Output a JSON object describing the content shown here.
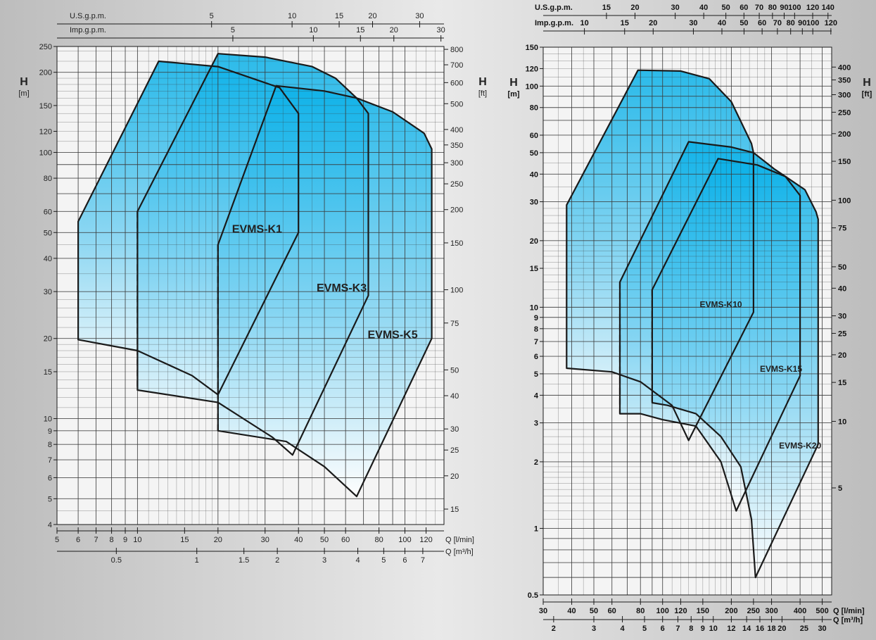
{
  "colors": {
    "fill_top": "#08b0e8",
    "fill_bottom": "#ffffff",
    "grid": "#3a3a3a",
    "outline": "#1a1a1a",
    "plot_bg": "#f4f4f4"
  },
  "chart_data": [
    {
      "type": "area",
      "description_scale": "log-log",
      "ylabel": "H",
      "ylabel_unit": "[m]",
      "y2label": "H",
      "y2label_unit": "[ft]",
      "xlabel_lpm": "Q [l/min]",
      "xlabel_m3h": "Q [m³/h]",
      "top_axis_1_label": "U.S.g.p.m.",
      "top_axis_2_label": "Imp.g.p.m.",
      "xlim_lpm": [
        5,
        140
      ],
      "ylim_m": [
        4,
        250
      ],
      "x_ticks_lpm": [
        "5",
        "6",
        "7",
        "8",
        "9",
        "10",
        "15",
        "20",
        "30",
        "40",
        "50",
        "60",
        "80",
        "100",
        "120"
      ],
      "x_ticks_m3h": [
        "0.5",
        "1",
        "1.5",
        "2",
        "3",
        "4",
        "5",
        "6",
        "7"
      ],
      "x_ticks_usgpm": [
        "5",
        "10",
        "15",
        "20",
        "30"
      ],
      "x_ticks_impgpm": [
        "5",
        "10",
        "15",
        "20",
        "30"
      ],
      "y_ticks_m": [
        "4",
        "5",
        "6",
        "7",
        "8",
        "9",
        "10",
        "15",
        "20",
        "30",
        "40",
        "50",
        "60",
        "80",
        "100",
        "120",
        "150",
        "200",
        "250"
      ],
      "y_ticks_ft": [
        "15",
        "20",
        "25",
        "30",
        "40",
        "50",
        "75",
        "100",
        "150",
        "200",
        "250",
        "300",
        "350",
        "400",
        "500",
        "600",
        "700",
        "800"
      ],
      "series": [
        {
          "name": "EVMS-K1",
          "envelope": [
            [
              6,
              55
            ],
            [
              12,
              220
            ],
            [
              20,
              210
            ],
            [
              34,
              175
            ],
            [
              40,
              140
            ],
            [
              40,
              50
            ],
            [
              20,
              12.3
            ],
            [
              16,
              14.5
            ],
            [
              10,
              18
            ],
            [
              6,
              19.8
            ]
          ],
          "dashed": [
            [
              10,
              60
            ],
            [
              10,
              12.8
            ]
          ]
        },
        {
          "name": "EVMS-K3",
          "envelope": [
            [
              10,
              60
            ],
            [
              20,
              235
            ],
            [
              30,
              228
            ],
            [
              45,
              210
            ],
            [
              55,
              190
            ],
            [
              66,
              160
            ],
            [
              73,
              140
            ],
            [
              73,
              29
            ],
            [
              38,
              7.3
            ],
            [
              32,
              8.5
            ],
            [
              20,
              11.5
            ],
            [
              10,
              12.8
            ]
          ],
          "dashed": [
            [
              20,
              45
            ],
            [
              20,
              9
            ]
          ]
        },
        {
          "name": "EVMS-K5",
          "envelope": [
            [
              20,
              45
            ],
            [
              33,
              178
            ],
            [
              50,
              170
            ],
            [
              66,
              160
            ],
            [
              90,
              142
            ],
            [
              118,
              118
            ],
            [
              126,
              103
            ],
            [
              126,
              20
            ],
            [
              66,
              5.1
            ],
            [
              50,
              6.6
            ],
            [
              36,
              8.2
            ],
            [
              20,
              9
            ]
          ],
          "dashed": []
        }
      ]
    },
    {
      "type": "area",
      "description_scale": "log-log",
      "ylabel": "H",
      "ylabel_unit": "[m]",
      "y2label": "H",
      "y2label_unit": "[ft]",
      "xlabel_lpm": "Q [l/min]",
      "xlabel_m3h": "Q [m³/h]",
      "top_axis_1_label": "U.S.g.p.m.",
      "top_axis_2_label": "Imp.g.p.m.",
      "xlim_lpm": [
        30,
        550
      ],
      "ylim_m": [
        0.5,
        150
      ],
      "x_ticks_lpm": [
        "30",
        "40",
        "50",
        "60",
        "80",
        "100",
        "120",
        "150",
        "200",
        "250",
        "300",
        "400",
        "500"
      ],
      "x_ticks_m3h": [
        "2",
        "3",
        "4",
        "5",
        "6",
        "7",
        "8",
        "9",
        "10",
        "12",
        "14",
        "16",
        "18",
        "20",
        "25",
        "30"
      ],
      "x_ticks_usgpm": [
        "15",
        "20",
        "30",
        "40",
        "50",
        "60",
        "70",
        "80",
        "90",
        "100",
        "120",
        "140"
      ],
      "x_ticks_impgpm": [
        "10",
        "15",
        "20",
        "30",
        "40",
        "50",
        "60",
        "70",
        "80",
        "90",
        "100",
        "120"
      ],
      "y_ticks_m": [
        "0.5",
        "1",
        "2",
        "3",
        "4",
        "5",
        "6",
        "7",
        "8",
        "9",
        "10",
        "15",
        "20",
        "30",
        "40",
        "50",
        "60",
        "80",
        "100",
        "120",
        "150"
      ],
      "y_ticks_ft": [
        "5",
        "10",
        "15",
        "20",
        "25",
        "30",
        "40",
        "50",
        "75",
        "100",
        "150",
        "200",
        "250",
        "300",
        "350",
        "400"
      ],
      "series": [
        {
          "name": "EVMS-K10",
          "envelope": [
            [
              38,
              29
            ],
            [
              78,
              118
            ],
            [
              120,
              117
            ],
            [
              160,
              108
            ],
            [
              200,
              85
            ],
            [
              245,
              55
            ],
            [
              250,
              50
            ],
            [
              250,
              9.5
            ],
            [
              130,
              2.5
            ],
            [
              110,
              3.6
            ],
            [
              80,
              4.6
            ],
            [
              60,
              5.1
            ],
            [
              38,
              5.3
            ]
          ],
          "dashed": [
            [
              65,
              13
            ],
            [
              65,
              3.3
            ]
          ]
        },
        {
          "name": "EVMS-K15",
          "envelope": [
            [
              65,
              13
            ],
            [
              130,
              56
            ],
            [
              200,
              53
            ],
            [
              250,
              50
            ],
            [
              310,
              42
            ],
            [
              345,
              39
            ],
            [
              400,
              32
            ],
            [
              400,
              4.9
            ],
            [
              210,
              1.2
            ],
            [
              180,
              2.0
            ],
            [
              140,
              2.9
            ],
            [
              100,
              3.1
            ],
            [
              80,
              3.3
            ],
            [
              65,
              3.3
            ]
          ],
          "dashed": [
            [
              90,
              12
            ],
            [
              90,
              3.7
            ]
          ]
        },
        {
          "name": "EVMS-K20",
          "envelope": [
            [
              90,
              12
            ],
            [
              175,
              47
            ],
            [
              260,
              44
            ],
            [
              345,
              39
            ],
            [
              420,
              34
            ],
            [
              470,
              27
            ],
            [
              480,
              25
            ],
            [
              480,
              2.4
            ],
            [
              255,
              0.6
            ],
            [
              245,
              1.1
            ],
            [
              220,
              1.9
            ],
            [
              180,
              2.6
            ],
            [
              140,
              3.3
            ],
            [
              105,
              3.6
            ],
            [
              90,
              3.7
            ]
          ],
          "dashed": []
        }
      ]
    }
  ]
}
